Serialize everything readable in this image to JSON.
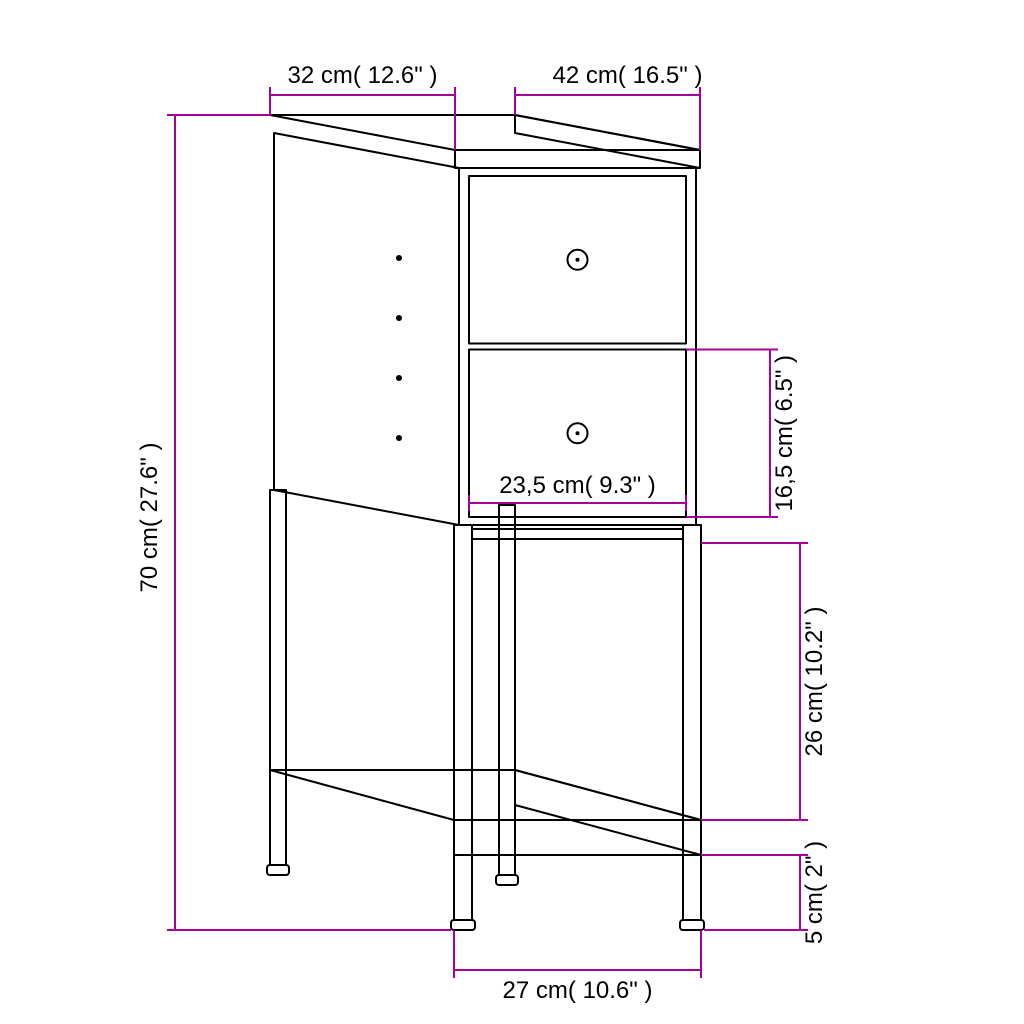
{
  "type": "dimensioned-line-drawing",
  "background_color": "#ffffff",
  "line_color": "#000000",
  "dimension_color": "#a6009a",
  "label_fontsize_pt": 18,
  "dimensions": {
    "top_left": {
      "text": "32 cm( 12.6\" )"
    },
    "top_right": {
      "text": "42 cm( 16.5\" )"
    },
    "left_height": {
      "text": "70 cm( 27.6\" )"
    },
    "drawer_h": {
      "text": "16,5 cm( 6.5\" )"
    },
    "drawer_w": {
      "text": "23,5 cm( 9.3\" )"
    },
    "gap_h": {
      "text": "26 cm( 10.2\" )"
    },
    "foot_h": {
      "text": "5 cm( 2\" )"
    },
    "shelf_w": {
      "text": "27 cm( 10.6\" )"
    }
  },
  "furniture": {
    "drawers": 2,
    "knob_radius": 10
  }
}
